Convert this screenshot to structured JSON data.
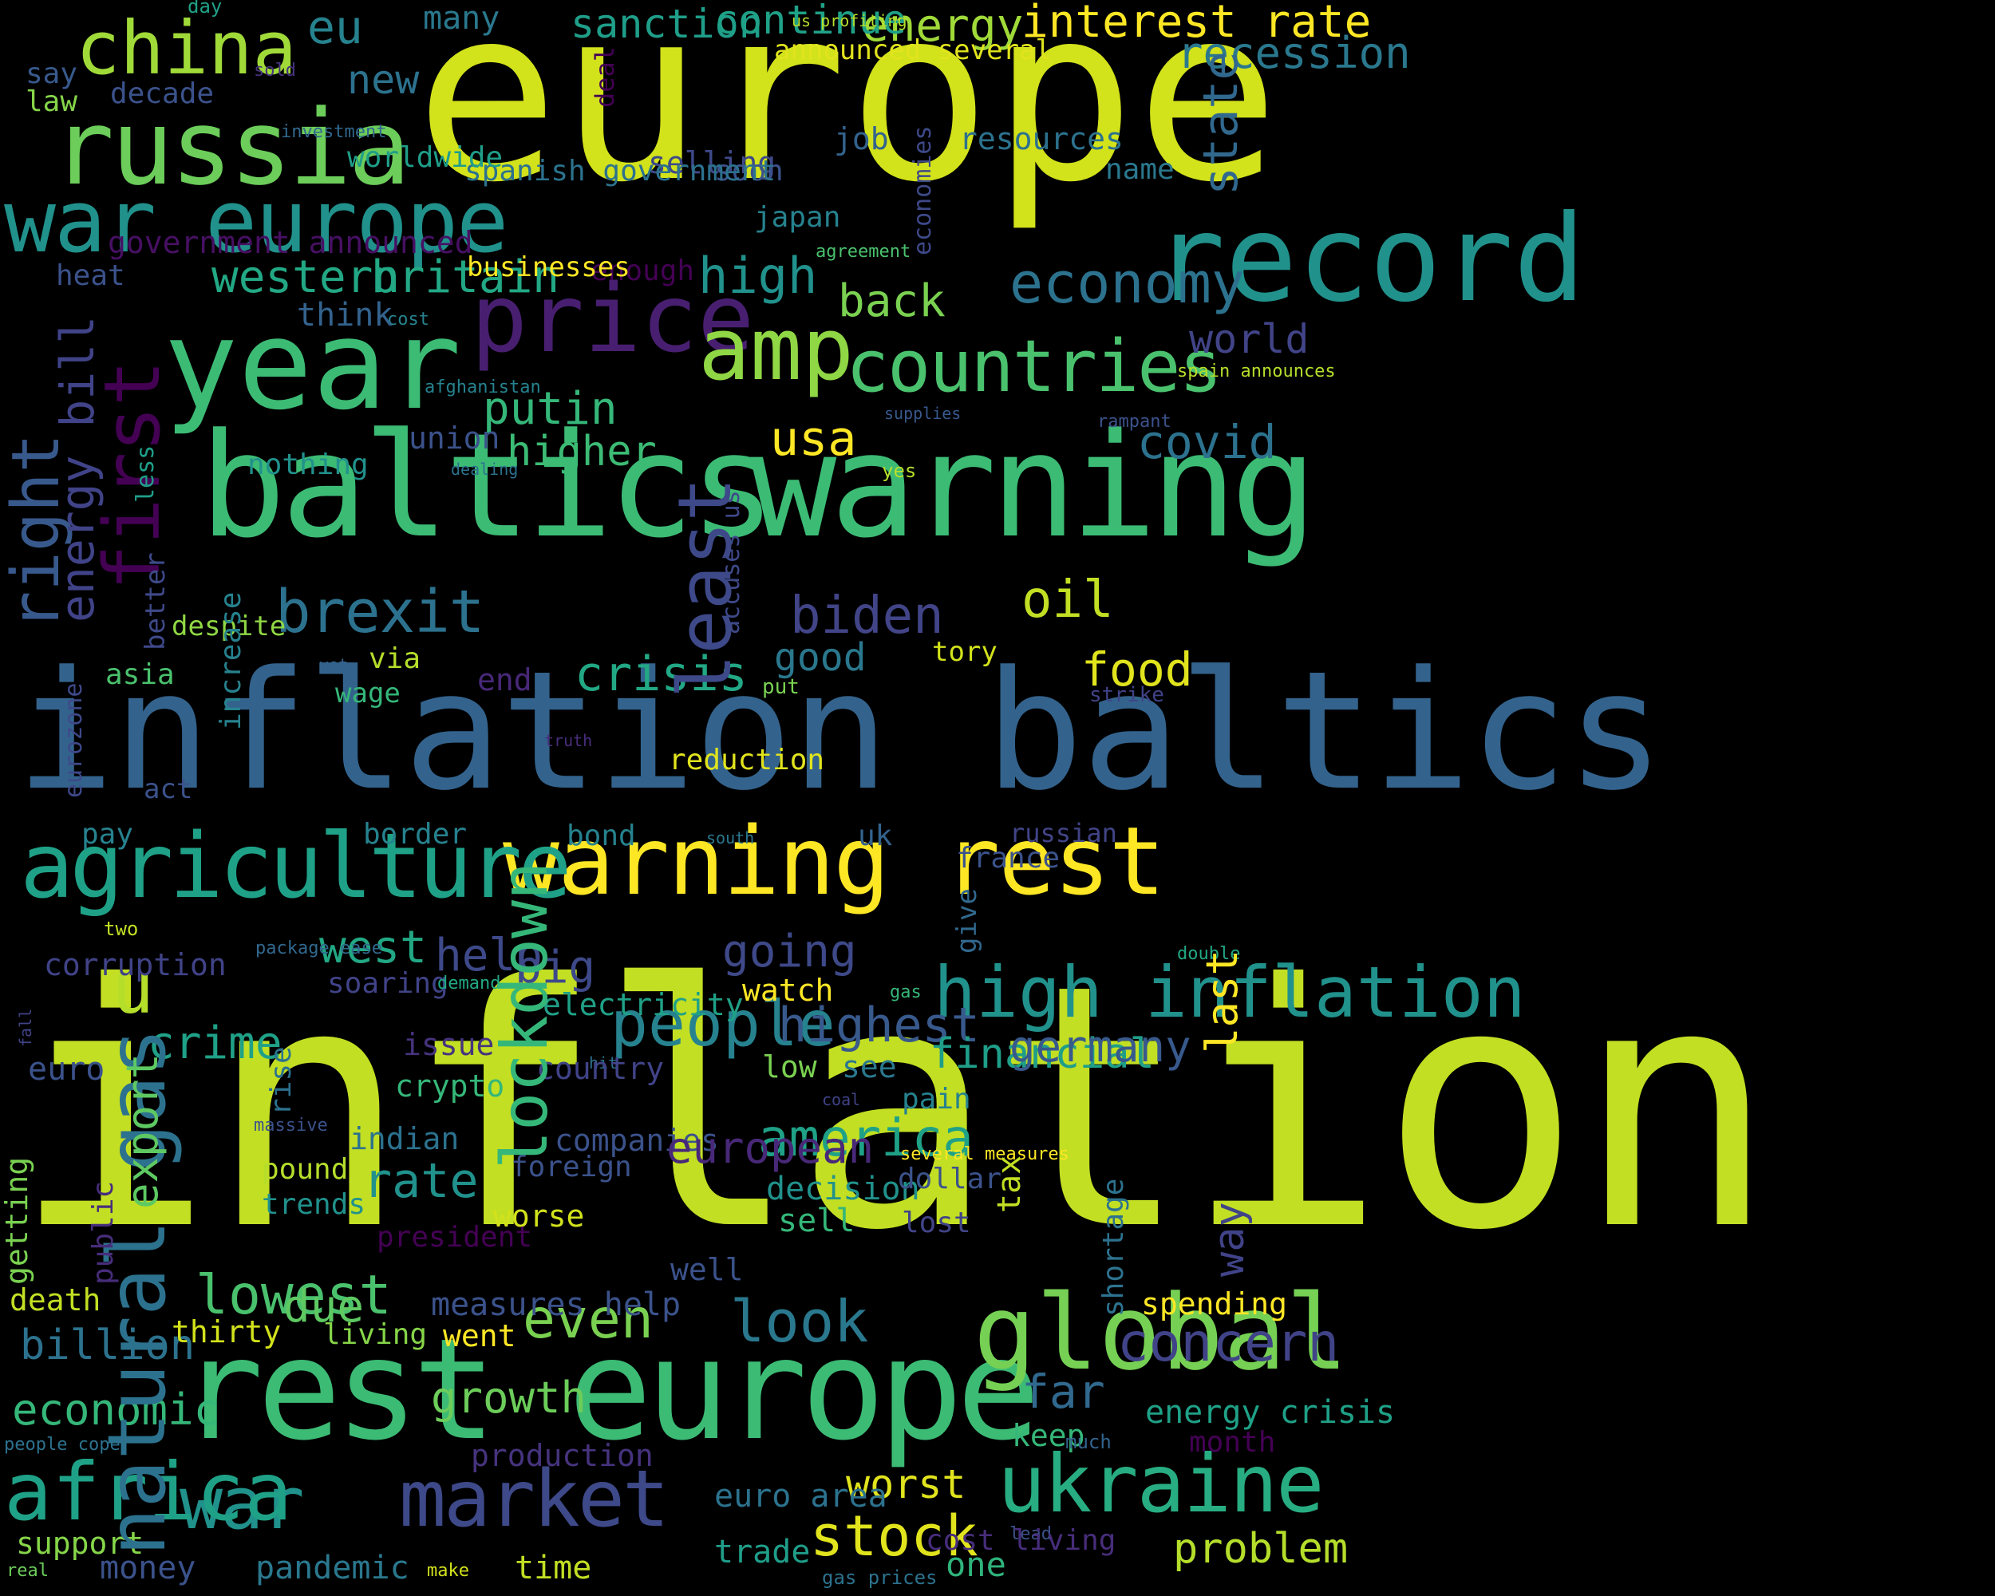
{
  "cloud": {
    "words": [
      {
        "text": "europe",
        "color": "#d2e21b"
      },
      {
        "text": "inflation",
        "color": "#c2df23"
      },
      {
        "text": "inflation baltics",
        "color": "#33638d"
      },
      {
        "text": "baltics",
        "color": "#3cbb75"
      },
      {
        "text": "warning",
        "color": "#3cbb75"
      },
      {
        "text": "rest europe",
        "color": "#3cbb75"
      },
      {
        "text": "year",
        "color": "#3cbb75"
      },
      {
        "text": "russia",
        "color": "#6ccd5a"
      },
      {
        "text": "war europe",
        "color": "#21918c"
      },
      {
        "text": "price",
        "color": "#481f70"
      },
      {
        "text": "warning rest",
        "color": "#fde725"
      },
      {
        "text": "agriculture",
        "color": "#1fa187"
      },
      {
        "text": "china",
        "color": "#a0da39"
      },
      {
        "text": "amp",
        "color": "#8fd744"
      },
      {
        "text": "countries",
        "color": "#4ac16d"
      },
      {
        "text": "record",
        "color": "#21918c"
      },
      {
        "text": "brexit",
        "color": "#2c728e"
      },
      {
        "text": "u",
        "color": "#b5de2b"
      },
      {
        "text": "high inflation",
        "color": "#21918c"
      },
      {
        "text": "global",
        "color": "#75d054"
      },
      {
        "text": "market",
        "color": "#3e4989"
      },
      {
        "text": "war",
        "color": "#21918c"
      },
      {
        "text": "ukraine",
        "color": "#27ad81"
      },
      {
        "text": "africa",
        "color": "#1fa187"
      },
      {
        "text": "people",
        "color": "#26828e"
      },
      {
        "text": "eu",
        "color": "#26828e"
      },
      {
        "text": "high",
        "color": "#21918c"
      },
      {
        "text": "economy",
        "color": "#2c728e"
      },
      {
        "text": "usa",
        "color": "#fde725"
      },
      {
        "text": "oil",
        "color": "#c2df23"
      },
      {
        "text": "biden",
        "color": "#414487"
      },
      {
        "text": "crisis",
        "color": "#22a884"
      },
      {
        "text": "food",
        "color": "#e1e41d"
      },
      {
        "text": "interest rate",
        "color": "#fde725"
      },
      {
        "text": "energy",
        "color": "#a0da39"
      },
      {
        "text": "recession",
        "color": "#2a788e"
      },
      {
        "text": "covid",
        "color": "#2c728e"
      },
      {
        "text": "putin",
        "color": "#35b779"
      },
      {
        "text": "higher",
        "color": "#3cbb75"
      },
      {
        "text": "western",
        "color": "#22a884"
      },
      {
        "text": "britain",
        "color": "#22a884"
      },
      {
        "text": "back",
        "color": "#7ad151"
      },
      {
        "text": "world",
        "color": "#414487"
      },
      {
        "text": "sanction",
        "color": "#1f9e89"
      },
      {
        "text": "continue",
        "color": "#1fa187"
      },
      {
        "text": "new",
        "color": "#2c728e"
      },
      {
        "text": "many",
        "color": "#2a788e"
      },
      {
        "text": "going",
        "color": "#3e4989"
      },
      {
        "text": "big",
        "color": "#3e4989"
      },
      {
        "text": "highest",
        "color": "#38598c"
      },
      {
        "text": "crime",
        "color": "#1fa187"
      },
      {
        "text": "west",
        "color": "#22a884"
      },
      {
        "text": "help",
        "color": "#3e4989"
      },
      {
        "text": "financial",
        "color": "#1f9e89"
      },
      {
        "text": "germany",
        "color": "#38598c"
      },
      {
        "text": "america",
        "color": "#1fa187"
      },
      {
        "text": "rate",
        "color": "#21918c"
      },
      {
        "text": "lowest",
        "color": "#4ac16d"
      },
      {
        "text": "due",
        "color": "#5ec962"
      },
      {
        "text": "even",
        "color": "#7ad151"
      },
      {
        "text": "look",
        "color": "#2a788e"
      },
      {
        "text": "concern",
        "color": "#404387"
      },
      {
        "text": "far",
        "color": "#31688e"
      },
      {
        "text": "worst",
        "color": "#e1e41d"
      },
      {
        "text": "stock",
        "color": "#e1e41d"
      },
      {
        "text": "one",
        "color": "#2fb47c"
      },
      {
        "text": "problem",
        "color": "#b5de2b"
      },
      {
        "text": "billion",
        "color": "#2c728e"
      },
      {
        "text": "economic",
        "color": "#35b779"
      },
      {
        "text": "growth",
        "color": "#6ccd5a"
      },
      {
        "text": "money",
        "color": "#3b528b"
      },
      {
        "text": "pandemic",
        "color": "#2a788e"
      },
      {
        "text": "time",
        "color": "#c2df23"
      },
      {
        "text": "energy crisis",
        "color": "#1fa187"
      },
      {
        "text": "month",
        "color": "#440154"
      },
      {
        "text": "keep",
        "color": "#35b779"
      },
      {
        "text": "much",
        "color": "#33638d"
      },
      {
        "text": "lead",
        "color": "#3b528b"
      },
      {
        "text": "gas prices",
        "color": "#2c728e"
      },
      {
        "text": "trade",
        "color": "#1f9e89"
      },
      {
        "text": "euro area",
        "color": "#2c728e"
      },
      {
        "text": "cost living",
        "color": "#472d7b"
      },
      {
        "text": "production",
        "color": "#46337e"
      },
      {
        "text": "support",
        "color": "#86d549"
      },
      {
        "text": "real",
        "color": "#6ccd5a"
      },
      {
        "text": "make",
        "color": "#d2e21b"
      },
      {
        "text": "people cope",
        "color": "#2c728e"
      },
      {
        "text": "spending",
        "color": "#fde725"
      },
      {
        "text": "measures help",
        "color": "#3b528b"
      },
      {
        "text": "living",
        "color": "#86d549"
      },
      {
        "text": "went",
        "color": "#fde725"
      },
      {
        "text": "well",
        "color": "#3b528b"
      },
      {
        "text": "thirty",
        "color": "#d2e21b"
      },
      {
        "text": "death",
        "color": "#c2df23"
      },
      {
        "text": "corruption",
        "color": "#404387"
      },
      {
        "text": "euro",
        "color": "#3b528b"
      },
      {
        "text": "soaring",
        "color": "#404387"
      },
      {
        "text": "demand",
        "color": "#22a884"
      },
      {
        "text": "package ease",
        "color": "#31688e"
      },
      {
        "text": "two",
        "color": "#c2df23"
      },
      {
        "text": "watch",
        "color": "#fde725"
      },
      {
        "text": "gas",
        "color": "#35b779"
      },
      {
        "text": "double",
        "color": "#22a884"
      },
      {
        "text": "france",
        "color": "#3b528b"
      },
      {
        "text": "russian",
        "color": "#414487"
      },
      {
        "text": "uk",
        "color": "#33638d"
      },
      {
        "text": "bond",
        "color": "#26828e"
      },
      {
        "text": "south",
        "color": "#2a788e"
      },
      {
        "text": "border",
        "color": "#26828e"
      },
      {
        "text": "pay",
        "color": "#26828e"
      },
      {
        "text": "act",
        "color": "#3b528b"
      },
      {
        "text": "truth",
        "color": "#472d7b"
      },
      {
        "text": "reduction",
        "color": "#e1e41d"
      },
      {
        "text": "put",
        "color": "#7ad151"
      },
      {
        "text": "strike",
        "color": "#404387"
      },
      {
        "text": "tory",
        "color": "#d2e21b"
      },
      {
        "text": "good",
        "color": "#2a788e"
      },
      {
        "text": "via",
        "color": "#b5de2b"
      },
      {
        "text": "wage",
        "color": "#35b779"
      },
      {
        "text": "end",
        "color": "#482878"
      },
      {
        "text": "asia",
        "color": "#4ac16d"
      },
      {
        "text": "yet",
        "color": "#33638d"
      },
      {
        "text": "despite",
        "color": "#8fd744"
      },
      {
        "text": "nothing",
        "color": "#21918c"
      },
      {
        "text": "union",
        "color": "#3b528b"
      },
      {
        "text": "dealing",
        "color": "#2c728e"
      },
      {
        "text": "yes",
        "color": "#b5de2b"
      },
      {
        "text": "rampant",
        "color": "#3b528b"
      },
      {
        "text": "supplies",
        "color": "#38598c"
      },
      {
        "text": "spain announces",
        "color": "#b5de2b"
      },
      {
        "text": "afghanistan",
        "color": "#26828e"
      },
      {
        "text": "cost",
        "color": "#26828e"
      },
      {
        "text": "think",
        "color": "#33638d"
      },
      {
        "text": "agreement",
        "color": "#4ac16d"
      },
      {
        "text": "japan",
        "color": "#26828e"
      },
      {
        "text": "enough",
        "color": "#440154"
      },
      {
        "text": "businesses",
        "color": "#fde725"
      },
      {
        "text": "heat",
        "color": "#3b528b"
      },
      {
        "text": "government announced",
        "color": "#471063"
      },
      {
        "text": "selling",
        "color": "#3e4989"
      },
      {
        "text": "soon",
        "color": "#3b528b"
      },
      {
        "text": "resources",
        "color": "#2c728e"
      },
      {
        "text": "job",
        "color": "#33638d"
      },
      {
        "text": "name",
        "color": "#2a788e"
      },
      {
        "text": "spanish government",
        "color": "#2c728e"
      },
      {
        "text": "worldwide",
        "color": "#1f9e89"
      },
      {
        "text": "investment",
        "color": "#31688e"
      },
      {
        "text": "sold",
        "color": "#46337e"
      },
      {
        "text": "decade",
        "color": "#3b528b"
      },
      {
        "text": "law",
        "color": "#86d549"
      },
      {
        "text": "say",
        "color": "#38598c"
      },
      {
        "text": "day",
        "color": "#1fa187"
      },
      {
        "text": "us profiting",
        "color": "#b5de2b"
      },
      {
        "text": "announced several",
        "color": "#e1e41d"
      },
      {
        "text": "electricity",
        "color": "#1fa187"
      },
      {
        "text": "hit",
        "color": "#2c728e"
      },
      {
        "text": "country",
        "color": "#404387"
      },
      {
        "text": "issue",
        "color": "#46337e"
      },
      {
        "text": "crypto",
        "color": "#35b779"
      },
      {
        "text": "low",
        "color": "#7ad151"
      },
      {
        "text": "see",
        "color": "#2a788e"
      },
      {
        "text": "pain",
        "color": "#26828e"
      },
      {
        "text": "companies",
        "color": "#3b528b"
      },
      {
        "text": "indian",
        "color": "#2c728e"
      },
      {
        "text": "european",
        "color": "#482878"
      },
      {
        "text": "foreign",
        "color": "#3b528b"
      },
      {
        "text": "worse",
        "color": "#d2e21b"
      },
      {
        "text": "president",
        "color": "#440154"
      },
      {
        "text": "decision",
        "color": "#21918c"
      },
      {
        "text": "sell",
        "color": "#35b779"
      },
      {
        "text": "dollar",
        "color": "#3b528b"
      },
      {
        "text": "several measures",
        "color": "#fde725"
      },
      {
        "text": "lost",
        "color": "#414487"
      },
      {
        "text": "coal",
        "color": "#404387"
      },
      {
        "text": "pound",
        "color": "#b5de2b"
      },
      {
        "text": "trends",
        "color": "#21918c"
      },
      {
        "text": "massive",
        "color": "#3b528b"
      },
      {
        "text": "first",
        "color": "#440154"
      },
      {
        "text": "least",
        "color": "#3e4989"
      },
      {
        "text": "natural gas",
        "color": "#2c728e"
      },
      {
        "text": "right",
        "color": "#38598c"
      },
      {
        "text": "lockdown",
        "color": "#35b779"
      },
      {
        "text": "state",
        "color": "#31688e"
      },
      {
        "text": "energy bill",
        "color": "#404387"
      },
      {
        "text": "last",
        "color": "#fde725"
      },
      {
        "text": "way",
        "color": "#404387"
      },
      {
        "text": "export",
        "color": "#5ec962"
      },
      {
        "text": "tax",
        "color": "#c2df23"
      },
      {
        "text": "give",
        "color": "#31688e"
      },
      {
        "text": "shortage",
        "color": "#2c728e"
      },
      {
        "text": "getting",
        "color": "#7ad151"
      },
      {
        "text": "public",
        "color": "#472d7b"
      },
      {
        "text": "rise",
        "color": "#2c728e"
      },
      {
        "text": "fall",
        "color": "#404387"
      },
      {
        "text": "increase",
        "color": "#26828e"
      },
      {
        "text": "eurozone",
        "color": "#3e4989"
      },
      {
        "text": "better",
        "color": "#3e4989"
      },
      {
        "text": "less",
        "color": "#1f9e89"
      },
      {
        "text": "accuses us",
        "color": "#3e4989"
      },
      {
        "text": "economies",
        "color": "#3e4989"
      },
      {
        "text": "deal",
        "color": "#440154"
      }
    ]
  }
}
